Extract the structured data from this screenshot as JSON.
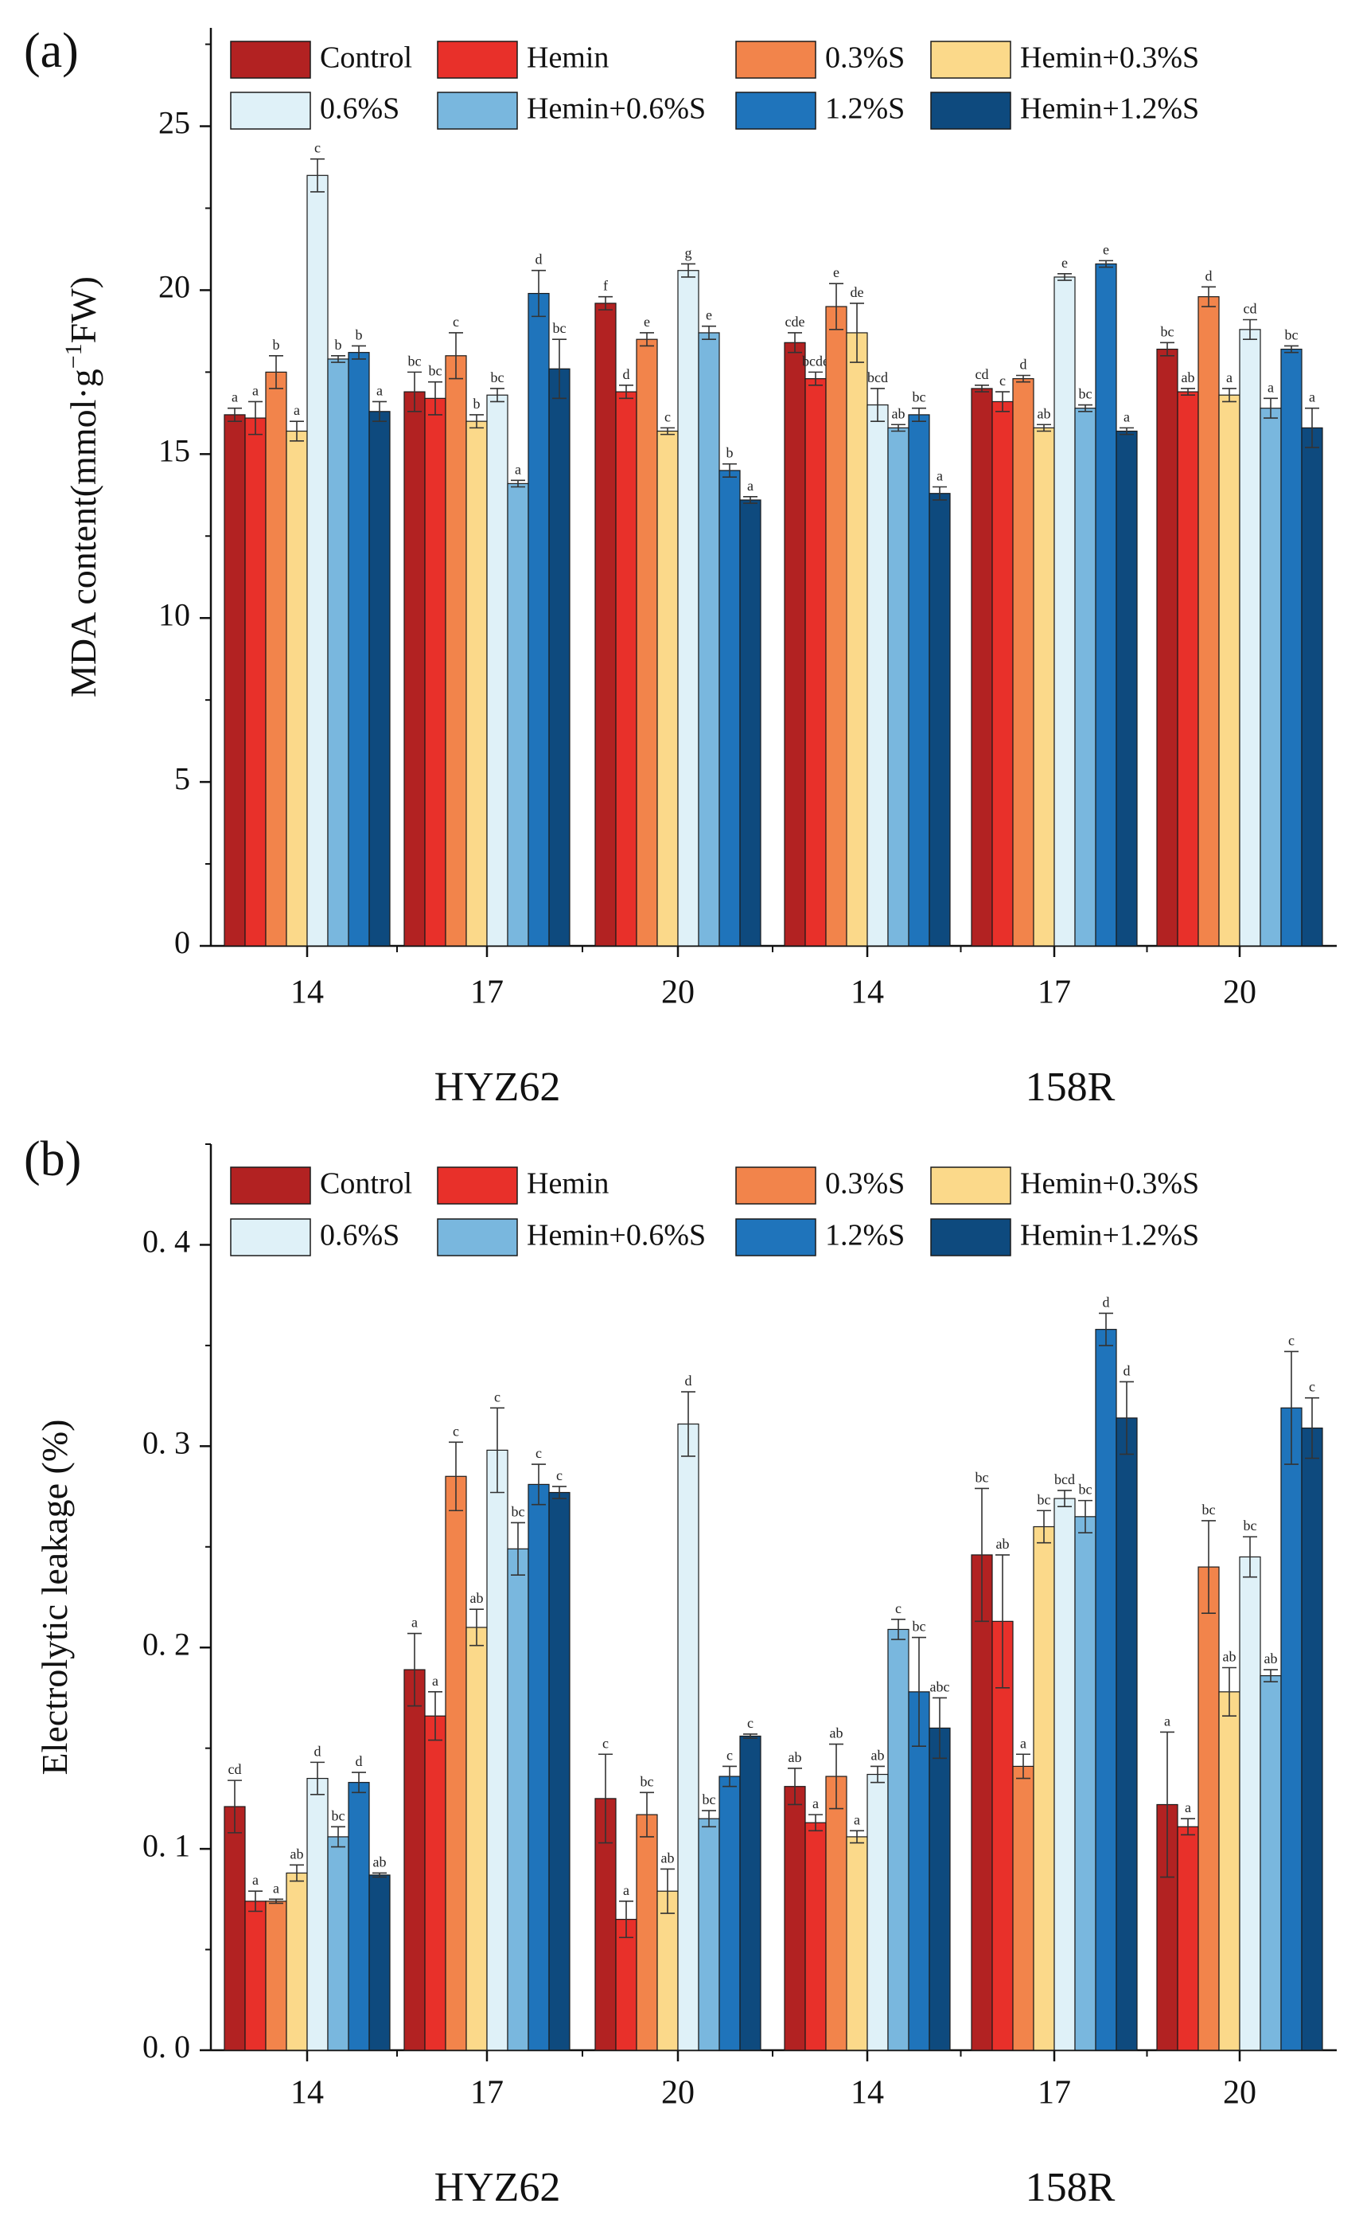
{
  "colors": {
    "Control": "#b22222",
    "Hemin": "#e8302a",
    "0.3%S": "#f2844b",
    "Hemin+0.3%S": "#fbd98a",
    "0.6%S": "#dff1f8",
    "Hemin+0.6%S": "#79b7de",
    "1.2%S": "#1f74bb",
    "Hemin+1.2%S": "#0e4a7e"
  },
  "chart_data": [
    {
      "type": "bar",
      "panel": "(a)",
      "ylabel_main": "MDA content(mmol·g",
      "ylabel_sup": "−1",
      "ylabel_end": "FW)",
      "ylim": [
        0,
        28
      ],
      "yticks": [
        0,
        5,
        10,
        15,
        20,
        25
      ],
      "ytick_labels": [
        "0",
        "5",
        "10",
        "15",
        "20",
        "25"
      ],
      "legend": [
        "Control",
        "Hemin",
        "0.3%S",
        "Hemin+0.3%S",
        "0.6%S",
        "Hemin+0.6%S",
        "1.2%S",
        "Hemin+1.2%S"
      ],
      "group_labels": [
        "HYZ62",
        "158R"
      ],
      "categories": [
        "14",
        "17",
        "20",
        "14",
        "17",
        "20"
      ],
      "series": [
        {
          "name": "Control",
          "values": [
            16.2,
            16.9,
            19.6,
            18.4,
            17.0,
            18.2
          ],
          "errors": [
            0.2,
            0.6,
            0.2,
            0.3,
            0.1,
            0.2
          ],
          "letters": [
            "a",
            "bc",
            "f",
            "cde",
            "cd",
            "bc"
          ]
        },
        {
          "name": "Hemin",
          "values": [
            16.1,
            16.7,
            16.9,
            17.3,
            16.6,
            16.9
          ],
          "errors": [
            0.5,
            0.5,
            0.2,
            0.2,
            0.3,
            0.1
          ],
          "letters": [
            "a",
            "bc",
            "d",
            "bcde",
            "c",
            "ab"
          ]
        },
        {
          "name": "0.3%S",
          "values": [
            17.5,
            18.0,
            18.5,
            19.5,
            17.3,
            19.8
          ],
          "errors": [
            0.5,
            0.7,
            0.2,
            0.7,
            0.1,
            0.3
          ],
          "letters": [
            "b",
            "c",
            "e",
            "e",
            "d",
            "d"
          ]
        },
        {
          "name": "Hemin+0.3%S",
          "values": [
            15.7,
            16.0,
            15.7,
            18.7,
            15.8,
            16.8
          ],
          "errors": [
            0.3,
            0.2,
            0.1,
            0.9,
            0.1,
            0.2
          ],
          "letters": [
            "a",
            "b",
            "c",
            "de",
            "ab",
            "a"
          ]
        },
        {
          "name": "0.6%S",
          "values": [
            23.5,
            16.8,
            20.6,
            16.5,
            20.4,
            18.8
          ],
          "errors": [
            0.5,
            0.2,
            0.2,
            0.5,
            0.1,
            0.3
          ],
          "letters": [
            "c",
            "bc",
            "g",
            "bcd",
            "e",
            "cd"
          ]
        },
        {
          "name": "Hemin+0.6%S",
          "values": [
            17.9,
            14.1,
            18.7,
            15.8,
            16.4,
            16.4
          ],
          "errors": [
            0.1,
            0.1,
            0.2,
            0.1,
            0.1,
            0.3
          ],
          "letters": [
            "b",
            "a",
            "e",
            "ab",
            "bc",
            "a"
          ]
        },
        {
          "name": "1.2%S",
          "values": [
            18.1,
            19.9,
            14.5,
            16.2,
            20.8,
            18.2
          ],
          "errors": [
            0.2,
            0.7,
            0.2,
            0.2,
            0.1,
            0.1
          ],
          "letters": [
            "b",
            "d",
            "b",
            "bc",
            "e",
            "bc"
          ]
        },
        {
          "name": "Hemin+1.2%S",
          "values": [
            16.3,
            17.6,
            13.6,
            13.8,
            15.7,
            15.8
          ],
          "errors": [
            0.3,
            0.9,
            0.1,
            0.2,
            0.1,
            0.6
          ],
          "letters": [
            "a",
            "bc",
            "a",
            "a",
            "a",
            "a"
          ]
        }
      ]
    },
    {
      "type": "bar",
      "panel": "(b)",
      "ylabel_main": "Electrolytic leakage (%)",
      "ylim": [
        0,
        0.45
      ],
      "yticks": [
        0,
        0.1,
        0.2,
        0.3,
        0.4
      ],
      "ytick_labels": [
        "0. 0",
        "0. 1",
        "0. 2",
        "0. 3",
        "0. 4"
      ],
      "legend": [
        "Control",
        "Hemin",
        "0.3%S",
        "Hemin+0.3%S",
        "0.6%S",
        "Hemin+0.6%S",
        "1.2%S",
        "Hemin+1.2%S"
      ],
      "group_labels": [
        "HYZ62",
        "158R"
      ],
      "categories": [
        "14",
        "17",
        "20",
        "14",
        "17",
        "20"
      ],
      "series": [
        {
          "name": "Control",
          "values": [
            0.121,
            0.189,
            0.125,
            0.131,
            0.246,
            0.122
          ],
          "errors": [
            0.013,
            0.018,
            0.022,
            0.009,
            0.033,
            0.036
          ],
          "letters": [
            "cd",
            "a",
            "c",
            "ab",
            "bc",
            "a"
          ]
        },
        {
          "name": "Hemin",
          "values": [
            0.074,
            0.166,
            0.065,
            0.113,
            0.213,
            0.111
          ],
          "errors": [
            0.005,
            0.012,
            0.009,
            0.004,
            0.033,
            0.004
          ],
          "letters": [
            "a",
            "a",
            "a",
            "a",
            "ab",
            "a"
          ]
        },
        {
          "name": "0.3%S",
          "values": [
            0.074,
            0.285,
            0.117,
            0.136,
            0.141,
            0.24
          ],
          "errors": [
            0.001,
            0.017,
            0.011,
            0.016,
            0.006,
            0.023
          ],
          "letters": [
            "a",
            "c",
            "bc",
            "ab",
            "a",
            "bc"
          ]
        },
        {
          "name": "Hemin+0.3%S",
          "values": [
            0.088,
            0.21,
            0.079,
            0.106,
            0.26,
            0.178
          ],
          "errors": [
            0.004,
            0.009,
            0.011,
            0.003,
            0.008,
            0.012
          ],
          "letters": [
            "ab",
            "ab",
            "ab",
            "a",
            "bc",
            "ab"
          ]
        },
        {
          "name": "0.6%S",
          "values": [
            0.135,
            0.298,
            0.311,
            0.137,
            0.274,
            0.245
          ],
          "errors": [
            0.008,
            0.021,
            0.016,
            0.004,
            0.004,
            0.01
          ],
          "letters": [
            "d",
            "c",
            "d",
            "ab",
            "bcd",
            "bc"
          ]
        },
        {
          "name": "Hemin+0.6%S",
          "values": [
            0.106,
            0.249,
            0.115,
            0.209,
            0.265,
            0.186
          ],
          "errors": [
            0.005,
            0.013,
            0.004,
            0.005,
            0.008,
            0.003
          ],
          "letters": [
            "bc",
            "bc",
            "bc",
            "c",
            "bc",
            "ab"
          ]
        },
        {
          "name": "1.2%S",
          "values": [
            0.133,
            0.281,
            0.136,
            0.178,
            0.358,
            0.319
          ],
          "errors": [
            0.005,
            0.01,
            0.005,
            0.027,
            0.008,
            0.028
          ],
          "letters": [
            "d",
            "c",
            "c",
            "bc",
            "d",
            "c"
          ]
        },
        {
          "name": "Hemin+1.2%S",
          "values": [
            0.087,
            0.277,
            0.156,
            0.16,
            0.314,
            0.309
          ],
          "errors": [
            0.001,
            0.003,
            0.001,
            0.015,
            0.018,
            0.015
          ],
          "letters": [
            "ab",
            "c",
            "c",
            "abc",
            "d",
            "c"
          ]
        }
      ]
    }
  ]
}
